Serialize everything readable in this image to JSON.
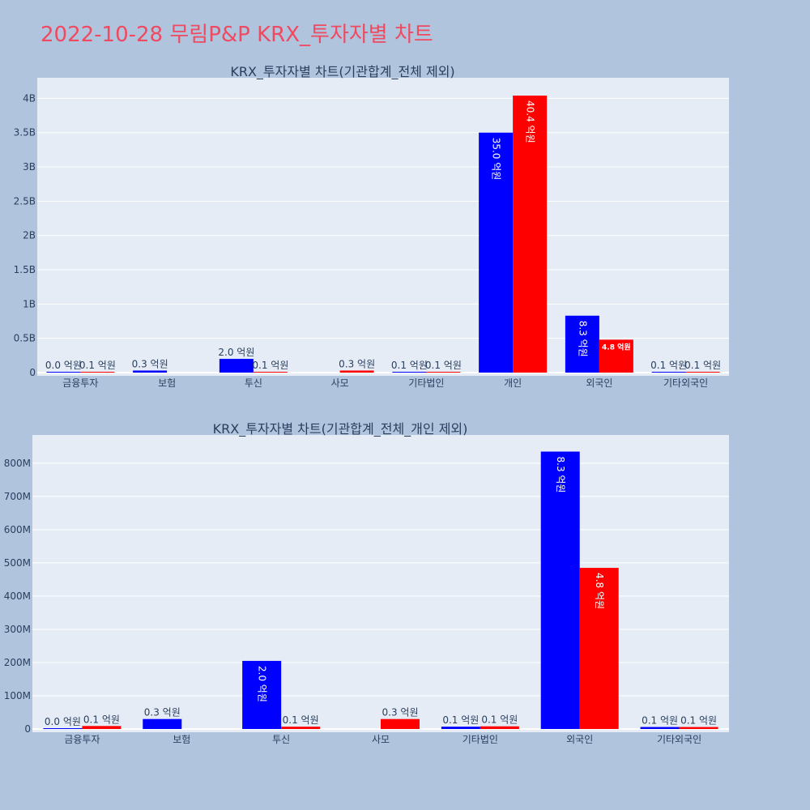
{
  "page_title": "2022-10-28 무림P&P KRX_투자자별 차트",
  "colors": {
    "background": "#b0c4de",
    "plot_bg": "#e5ecf6",
    "title": "#ef4a60",
    "buy": "#0000ff",
    "sell": "#ff0000"
  },
  "chart_data": [
    {
      "type": "bar",
      "title": "KRX_투자자별 차트(기관합계_전체 제외)",
      "categories": [
        "금융투자",
        "보험",
        "투신",
        "사모",
        "기타법인",
        "개인",
        "외국인",
        "기타외국인"
      ],
      "ylim": [
        0,
        4300000000
      ],
      "yticks": [
        0,
        500000000,
        1000000000,
        1500000000,
        2000000000,
        2500000000,
        3000000000,
        3500000000,
        4000000000
      ],
      "ytick_labels": [
        "0",
        "0.5B",
        "1B",
        "1.5B",
        "2B",
        "2.5B",
        "3B",
        "3.5B",
        "4B"
      ],
      "grid": true,
      "series": [
        {
          "color": "#0000ff",
          "values": [
            3000000,
            30000000,
            200000000,
            null,
            7000000,
            3500000000,
            830000000,
            6000000
          ],
          "labels": [
            "0.0 억원",
            "0.3 억원",
            "2.0 억원",
            "",
            "0.1 억원",
            "35.0 억원",
            "8.3 억원",
            "0.1 억원"
          ]
        },
        {
          "color": "#ff0000",
          "values": [
            8000000,
            null,
            7000000,
            30000000,
            7000000,
            4040000000,
            480000000,
            6000000
          ],
          "labels": [
            "0.1 억원",
            "",
            "0.1 억원",
            "0.3 억원",
            "0.1 억원",
            "40.4 억원",
            "4.8 억원",
            "0.1 억원"
          ]
        }
      ]
    },
    {
      "type": "bar",
      "title": "KRX_투자자별 차트(기관합계_전체_개인 제외)",
      "categories": [
        "금융투자",
        "보험",
        "투신",
        "사모",
        "기타법인",
        "외국인",
        "기타외국인"
      ],
      "ylim": [
        0,
        885000000
      ],
      "yticks": [
        0,
        100000000,
        200000000,
        300000000,
        400000000,
        500000000,
        600000000,
        700000000,
        800000000
      ],
      "ytick_labels": [
        "0",
        "100M",
        "200M",
        "300M",
        "400M",
        "500M",
        "600M",
        "700M",
        "800M"
      ],
      "grid": true,
      "series": [
        {
          "color": "#0000ff",
          "values": [
            1500000,
            30000000,
            205000000,
            null,
            7000000,
            835000000,
            6000000
          ],
          "labels": [
            "0.0 억원",
            "0.3 억원",
            "2.0 억원",
            "",
            "0.1 억원",
            "8.3 억원",
            "0.1 억원"
          ]
        },
        {
          "color": "#ff0000",
          "values": [
            9000000,
            null,
            7000000,
            30000000,
            8000000,
            485000000,
            6000000
          ],
          "labels": [
            "0.1 억원",
            "",
            "0.1 억원",
            "0.3 억원",
            "0.1 억원",
            "4.8 억원",
            "0.1 억원"
          ]
        }
      ]
    }
  ]
}
